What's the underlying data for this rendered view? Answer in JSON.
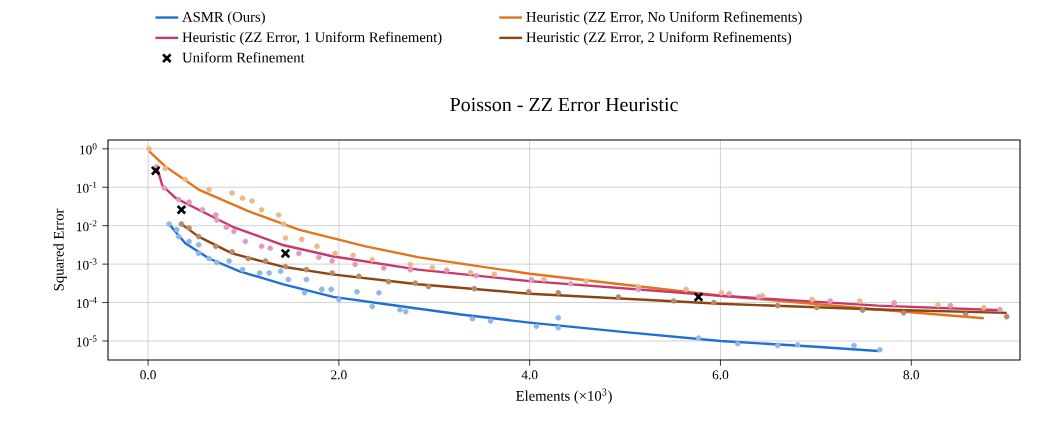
{
  "chart_data": {
    "type": "line",
    "title": "Poisson - ZZ Error Heuristic",
    "xlabel": "Elements (×10$^{3}$)",
    "ylabel": "Squared Error",
    "log": "y",
    "grid": true,
    "legend": "top",
    "xlim": [
      -0.42,
      9.14
    ],
    "ylim": [
      3.2e-06,
      1.7
    ],
    "xticks": [
      {
        "value": 0,
        "label": "0.0"
      },
      {
        "value": 2,
        "label": "2.0"
      },
      {
        "value": 4,
        "label": "4.0"
      },
      {
        "value": 6,
        "label": "6.0"
      },
      {
        "value": 8,
        "label": "8.0"
      }
    ],
    "yticks": [
      {
        "value": 1e-05,
        "label": "10$^{-5}$"
      },
      {
        "value": 0.0001,
        "label": "10$^{-4}$"
      },
      {
        "value": 0.001,
        "label": "10$^{-3}$"
      },
      {
        "value": 0.01,
        "label": "10$^{-2}$"
      },
      {
        "value": 0.1,
        "label": "10$^{-1}$"
      },
      {
        "value": 1,
        "label": "10$^{0}$"
      }
    ],
    "series": [
      {
        "type": "scatter",
        "marker": "circle",
        "color": "#8fb8ea",
        "x": [
          0.22,
          0.3,
          0.32,
          0.43,
          0.53,
          0.53,
          0.64,
          0.72,
          0.85,
          0.99,
          1.17,
          1.27,
          1.39,
          1.47,
          1.66,
          1.64,
          1.82,
          1.92,
          2.0,
          2.19,
          2.42,
          2.35,
          2.64,
          2.7,
          3.4,
          3.59,
          4.07,
          4.3,
          4.3,
          5.77,
          6.18,
          6.6,
          6.81,
          7.4,
          7.67
        ],
        "values": [
          0.011,
          0.0079,
          0.0052,
          0.0039,
          0.0032,
          0.0019,
          0.0014,
          0.0011,
          0.0012,
          0.00072,
          0.00059,
          0.00059,
          0.00065,
          0.0004,
          0.0004,
          0.00018,
          0.00022,
          0.00022,
          0.00012,
          0.00019,
          0.00018,
          7.9e-05,
          6.5e-05,
          5.8e-05,
          3.8e-05,
          3.3e-05,
          2.4e-05,
          4e-05,
          2.2e-05,
          1.2e-05,
          8.5e-06,
          7.6e-06,
          7.9e-06,
          7.6e-06,
          5.9e-06
        ]
      },
      {
        "type": "scatter",
        "marker": "circle",
        "color": "#f0b784",
        "x": [
          0.01,
          0.18,
          0.39,
          0.64,
          0.88,
          0.99,
          1.09,
          1.19,
          1.37,
          1.42,
          1.44,
          1.61,
          1.77,
          1.96,
          2.15,
          2.35,
          2.75,
          2.98,
          3.38,
          3.63,
          4.15,
          4.59,
          5.14,
          5.64,
          6.01,
          6.44,
          6.96,
          7.46,
          7.82,
          8.28,
          8.76
        ],
        "values": [
          1.0,
          0.31,
          0.16,
          0.087,
          0.071,
          0.052,
          0.044,
          0.026,
          0.019,
          0.011,
          0.0048,
          0.0044,
          0.0029,
          0.0019,
          0.0017,
          0.0013,
          0.00098,
          0.00081,
          0.0006,
          0.00054,
          0.0004,
          0.00036,
          0.00026,
          0.00022,
          0.00018,
          0.00015,
          0.00012,
          0.00011,
          0.0001,
          8.7e-05,
          7.4e-05
        ]
      },
      {
        "type": "scatter",
        "marker": "circle",
        "color": "#e39ab8",
        "x": [
          0.09,
          0.17,
          0.32,
          0.43,
          0.57,
          0.71,
          0.72,
          0.82,
          0.9,
          1.02,
          1.19,
          1.28,
          1.58,
          1.79,
          1.93,
          2.17,
          2.47,
          2.75,
          3.13,
          3.44,
          4.02,
          4.43,
          5.14,
          6.09,
          6.4,
          7.15,
          7.82,
          8.41,
          8.93
        ],
        "values": [
          0.34,
          0.095,
          0.048,
          0.041,
          0.026,
          0.019,
          0.014,
          0.0091,
          0.0071,
          0.0039,
          0.0029,
          0.0026,
          0.0019,
          0.0015,
          0.0012,
          0.00098,
          0.00079,
          0.00071,
          0.00069,
          0.0005,
          0.00039,
          0.00031,
          0.00022,
          0.00017,
          0.00014,
          0.00011,
          9.3e-05,
          8.3e-05,
          6.6e-05
        ]
      },
      {
        "type": "scatter",
        "marker": "circle",
        "color": "#b98a6a",
        "x": [
          0.35,
          0.43,
          0.53,
          0.71,
          0.88,
          1.05,
          1.23,
          1.44,
          1.66,
          1.93,
          2.21,
          2.52,
          2.8,
          2.94,
          3.42,
          3.99,
          4.3,
          4.93,
          5.51,
          5.93,
          6.6,
          7.01,
          7.49,
          7.92,
          8.57,
          9.0
        ],
        "values": [
          0.011,
          0.0087,
          0.0052,
          0.0029,
          0.0021,
          0.0014,
          0.0012,
          0.00087,
          0.00072,
          0.00059,
          0.00048,
          0.00035,
          0.00032,
          0.00026,
          0.00023,
          0.00019,
          0.00018,
          0.00014,
          0.00011,
          0.0001,
          8.3e-05,
          7.4e-05,
          6.3e-05,
          5.4e-05,
          4.9e-05,
          4.3e-05
        ]
      },
      {
        "name": "ASMR (Ours)",
        "marker": "none",
        "color": "#1f6fd6",
        "x": [
          0.22,
          0.39,
          0.64,
          0.96,
          1.41,
          1.94,
          2.63,
          3.3,
          4.0,
          5.0,
          6.0,
          7.0,
          7.65
        ],
        "values": [
          0.011,
          0.0035,
          0.0014,
          0.00065,
          0.0003,
          0.00014,
          8.1e-05,
          4.8e-05,
          3e-05,
          1.7e-05,
          1e-05,
          7.1e-06,
          5.5e-06
        ]
      },
      {
        "name": "Heuristic (ZZ Error, No Uniform Refinements)",
        "marker": "none",
        "color": "#e3731e",
        "x": [
          0.01,
          0.18,
          0.53,
          1.05,
          1.58,
          2.28,
          2.84,
          4.0,
          6.0,
          7.65,
          8.76
        ],
        "values": [
          0.87,
          0.35,
          0.087,
          0.024,
          0.0079,
          0.0029,
          0.0015,
          0.00056,
          0.00015,
          6.6e-05,
          3.9e-05
        ]
      },
      {
        "name": "Heuristic (ZZ Error, 1 Uniform Refinement)",
        "marker": "none",
        "color": "#c8386e",
        "x": [
          0.09,
          0.15,
          0.29,
          0.53,
          0.88,
          1.4,
          1.93,
          2.83,
          4.0,
          6.0,
          7.65,
          8.95
        ],
        "values": [
          0.35,
          0.11,
          0.052,
          0.026,
          0.0095,
          0.0032,
          0.0016,
          0.00072,
          0.00036,
          0.00015,
          8.3e-05,
          6.3e-05
        ]
      },
      {
        "name": "Heuristic (ZZ Error, 2 Uniform Refinements)",
        "marker": "none",
        "color": "#8b4513",
        "x": [
          0.35,
          0.53,
          0.88,
          1.4,
          1.93,
          2.83,
          4.0,
          6.0,
          7.65,
          9.0
        ],
        "values": [
          0.011,
          0.0052,
          0.0019,
          0.00087,
          0.00054,
          0.0003,
          0.00017,
          9.3e-05,
          6.6e-05,
          5.4e-05
        ]
      },
      {
        "type": "scatter",
        "name": "Uniform Refinement",
        "marker": "cross",
        "color": "#000000",
        "x": [
          0.08,
          0.35,
          1.44,
          5.77
        ],
        "values": [
          0.27,
          0.026,
          0.0019,
          0.00014
        ]
      }
    ]
  }
}
